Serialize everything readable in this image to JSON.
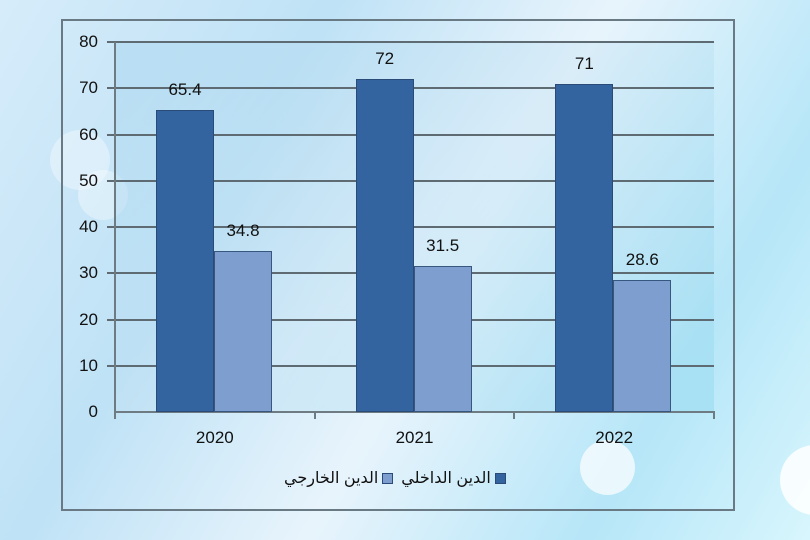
{
  "chart_data": {
    "type": "bar",
    "title": "",
    "xlabel": "",
    "ylabel": "",
    "categories": [
      "2020",
      "2021",
      "2022"
    ],
    "series": [
      {
        "name": "الدين الداخلي",
        "values": [
          65.4,
          72,
          71
        ],
        "color": "#3364a0"
      },
      {
        "name": "الدين الخارجي",
        "values": [
          34.8,
          31.5,
          28.6
        ],
        "color": "#7d9ecf"
      }
    ],
    "ylim": [
      0,
      80
    ],
    "yticks": [
      "0",
      "10",
      "20",
      "30",
      "40",
      "50",
      "60",
      "70",
      "80"
    ],
    "grid": true,
    "legend_position": "bottom",
    "data_labels": {
      "s0": [
        "65.4",
        "72",
        "71"
      ],
      "s1": [
        "34.8",
        "31.5",
        "28.6"
      ]
    }
  },
  "legend": {
    "domestic": "الدين الداخلي",
    "external": "الدين الخارجي"
  }
}
